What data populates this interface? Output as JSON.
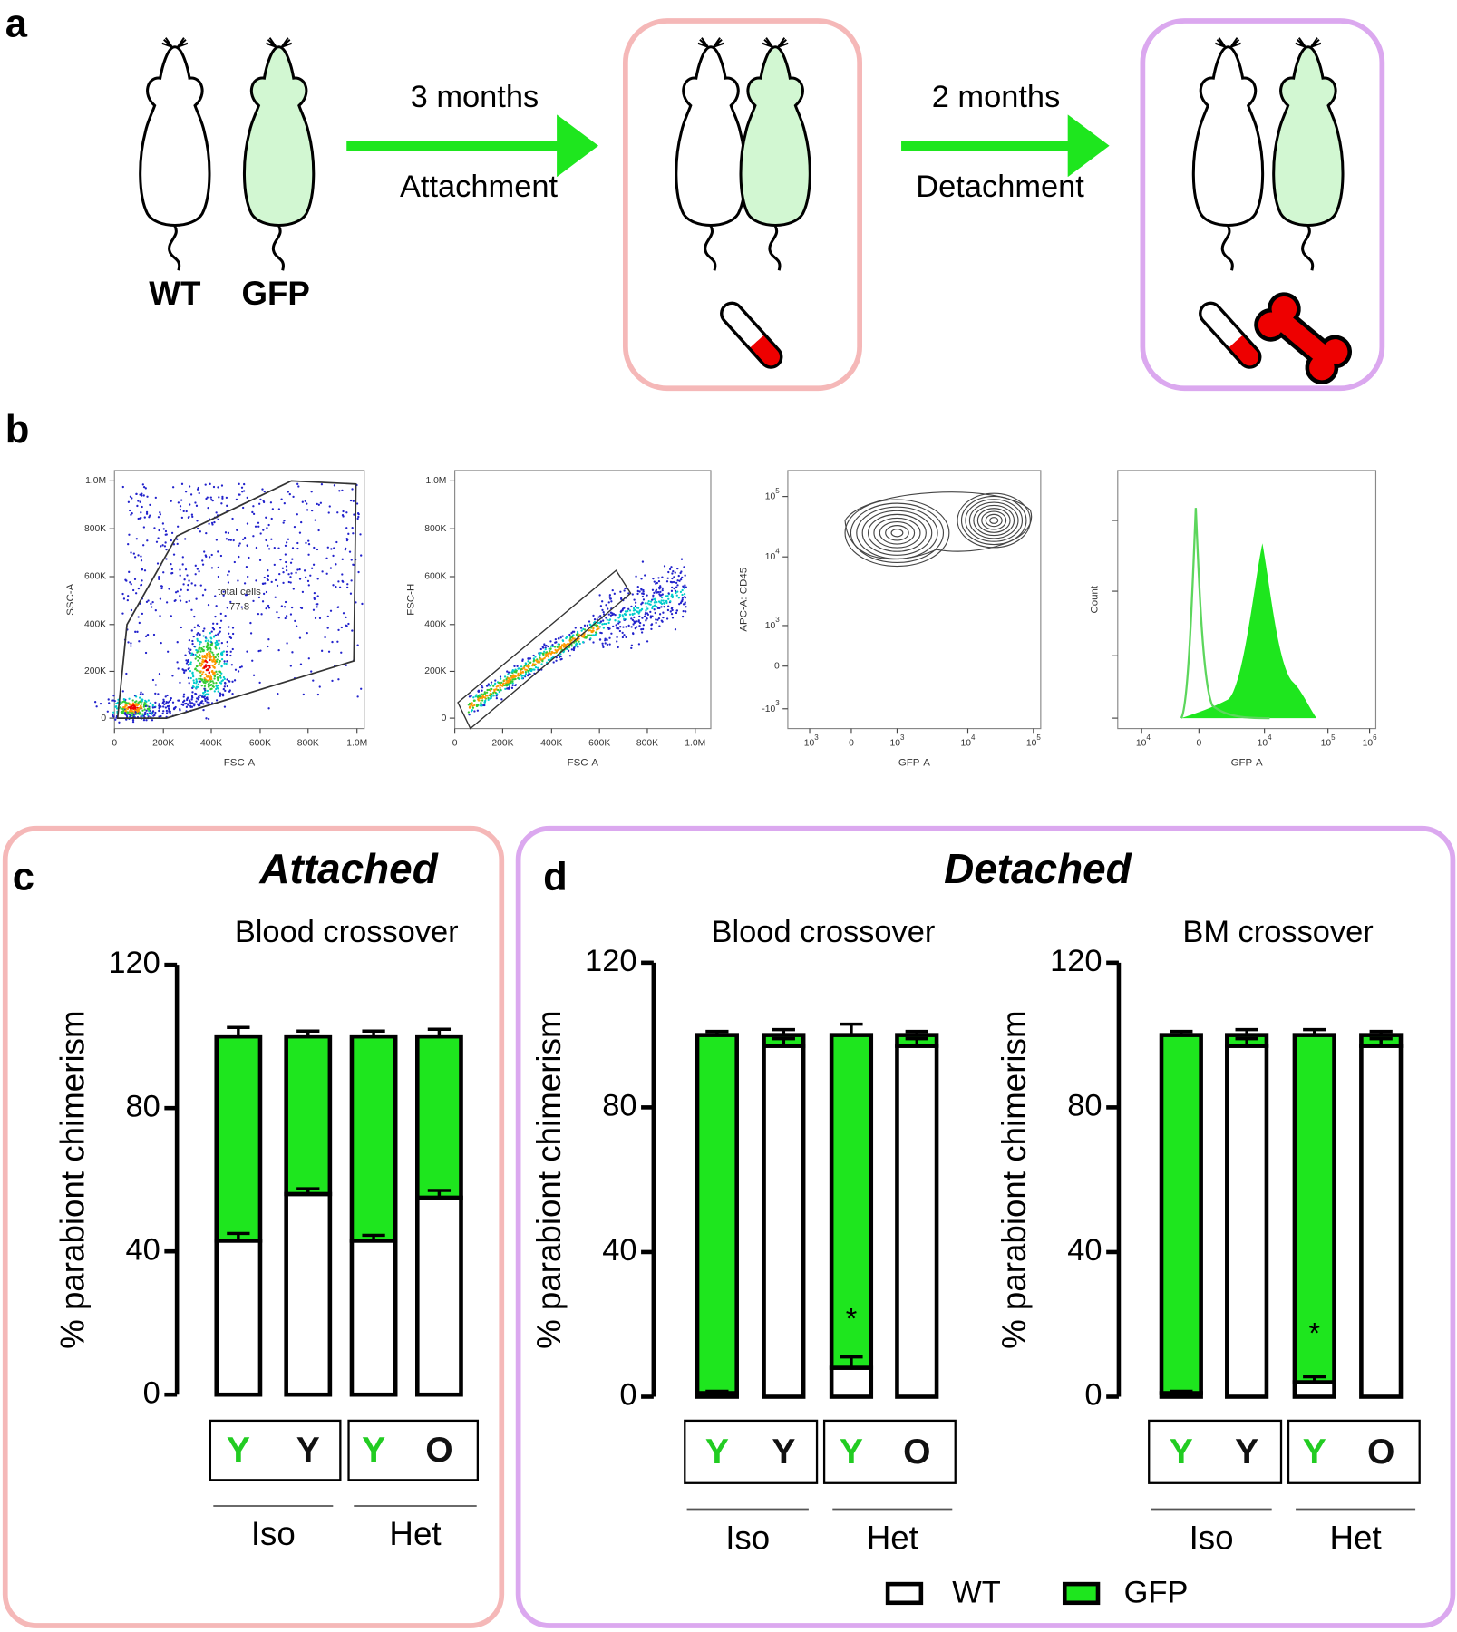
{
  "panel_labels": [
    "a",
    "b",
    "c",
    "d"
  ],
  "panel_a": {
    "mice_labels": [
      "WT",
      "GFP"
    ],
    "steps": [
      {
        "duration": "3 months",
        "label": "Attachment"
      },
      {
        "duration": "2 months",
        "label": "Detachment"
      }
    ]
  },
  "panel_b": {
    "plots": [
      {
        "xlabel": "FSC-A",
        "ylabel": "SSC-A",
        "xticks": [
          "0",
          "200K",
          "400K",
          "600K",
          "800K",
          "1.0M"
        ],
        "yticks": [
          "0",
          "200K",
          "400K",
          "600K",
          "800K",
          "1.0M"
        ],
        "gate_label": "total cells",
        "gate_value": 77.8
      },
      {
        "xlabel": "FSC-A",
        "ylabel": "FSC-H",
        "xticks": [
          "0",
          "200K",
          "400K",
          "600K",
          "800K",
          "1.0M"
        ],
        "yticks": [
          "0",
          "200K",
          "400K",
          "600K",
          "800K",
          "1.0M"
        ]
      },
      {
        "xlabel": "GFP-A",
        "ylabel": "APC-A: CD45",
        "xticks": [
          {
            "base": "-10",
            "exp": "3"
          },
          "0",
          {
            "base": "10",
            "exp": "3"
          },
          {
            "base": "10",
            "exp": "4"
          },
          {
            "base": "10",
            "exp": "5"
          }
        ],
        "yticks": [
          {
            "base": "10",
            "exp": "5"
          },
          {
            "base": "10",
            "exp": "4"
          },
          {
            "base": "10",
            "exp": "3"
          },
          "0",
          {
            "base": "-10",
            "exp": "3"
          }
        ]
      },
      {
        "xlabel": "GFP-A",
        "ylabel": "Count",
        "xticks": [
          {
            "base": "-10",
            "exp": "4"
          },
          "0",
          {
            "base": "10",
            "exp": "4"
          },
          {
            "base": "10",
            "exp": "5"
          },
          {
            "base": "10",
            "exp": "6"
          }
        ]
      }
    ]
  },
  "headings": {
    "c": "Attached",
    "d": "Detached"
  },
  "chart_data": [
    {
      "type": "stacked_bar",
      "title": "Blood crossover",
      "ylabel": "% parabiont chimerism",
      "ylim": [
        0,
        120
      ],
      "yticks": [
        0,
        40,
        80,
        120
      ],
      "categories": [
        "Y",
        "Y",
        "Y",
        "O"
      ],
      "category_colors": [
        "#22cc22",
        "#111111",
        "#22cc22",
        "#111111"
      ],
      "groups": [
        "Iso",
        "Het"
      ],
      "series": [
        {
          "color": "#ffffff",
          "values": [
            43,
            56,
            43,
            55
          ],
          "errors": [
            2,
            1.5,
            1.5,
            2
          ]
        },
        {
          "color": "#1ee61e",
          "values": [
            57,
            44,
            57,
            45
          ],
          "errors": [
            2.5,
            1.5,
            1.5,
            2
          ]
        }
      ]
    },
    {
      "type": "stacked_bar",
      "title": "Blood crossover",
      "ylabel": "% parabiont chimerism",
      "ylim": [
        0,
        120
      ],
      "yticks": [
        0,
        40,
        80,
        120
      ],
      "categories": [
        "Y",
        "Y",
        "Y",
        "O"
      ],
      "category_colors": [
        "#22cc22",
        "#111111",
        "#22cc22",
        "#111111"
      ],
      "groups": [
        "Iso",
        "Het"
      ],
      "annotation": "*",
      "series": [
        {
          "name": "WT",
          "color": "#ffffff",
          "values": [
            1,
            97,
            8,
            97
          ],
          "errors": [
            0.5,
            2,
            3,
            2
          ]
        },
        {
          "name": "GFP",
          "color": "#1ee61e",
          "values": [
            99,
            3,
            92,
            3
          ],
          "errors": [
            1,
            1.5,
            3,
            1
          ]
        }
      ]
    },
    {
      "type": "stacked_bar",
      "title": "BM crossover",
      "ylabel": "% parabiont chimerism",
      "ylim": [
        0,
        120
      ],
      "yticks": [
        0,
        40,
        80,
        120
      ],
      "categories": [
        "Y",
        "Y",
        "Y",
        "O"
      ],
      "category_colors": [
        "#22cc22",
        "#111111",
        "#22cc22",
        "#111111"
      ],
      "groups": [
        "Iso",
        "Het"
      ],
      "annotation": "*",
      "series": [
        {
          "color": "#ffffff",
          "values": [
            1,
            97,
            4,
            97
          ],
          "errors": [
            0.5,
            2,
            1.5,
            2
          ]
        },
        {
          "color": "#1ee61e",
          "values": [
            99,
            3,
            96,
            3
          ],
          "errors": [
            1,
            1.5,
            1.5,
            1
          ]
        }
      ]
    }
  ]
}
